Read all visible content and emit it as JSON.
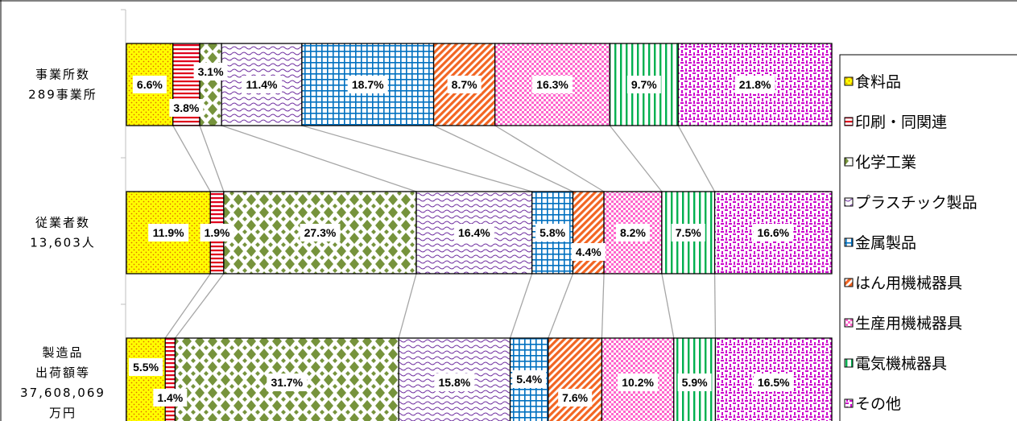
{
  "chart_data": {
    "type": "bar",
    "subtype": "stacked-100-horizontal",
    "title": "",
    "categories": [
      [
        "事業所数",
        "289事業所"
      ],
      [
        "従業者数",
        "13,603人"
      ],
      [
        "製造品",
        "出荷額等",
        "37,608,069",
        "万円"
      ]
    ],
    "series": [
      {
        "name": "食料品",
        "values": [
          6.6,
          11.9,
          5.5
        ],
        "color": "#ffff00"
      },
      {
        "name": "印刷・同関連",
        "values": [
          3.8,
          1.9,
          1.4
        ],
        "color": "#e0001b"
      },
      {
        "name": "化学工業",
        "values": [
          3.1,
          27.3,
          31.7
        ],
        "color": "#76933c"
      },
      {
        "name": "プラスチック製品",
        "values": [
          11.4,
          16.4,
          15.8
        ],
        "color": "#7030a0"
      },
      {
        "name": "金属製品",
        "values": [
          18.7,
          5.8,
          5.4
        ],
        "color": "#0070c0"
      },
      {
        "name": "はん用機械器具",
        "values": [
          8.7,
          4.4,
          7.6
        ],
        "color": "#f26522"
      },
      {
        "name": "生産用機械器具",
        "values": [
          16.3,
          8.2,
          10.2
        ],
        "color": "#ff66cc"
      },
      {
        "name": "電気機械器具",
        "values": [
          9.7,
          7.5,
          5.9
        ],
        "color": "#00b050"
      },
      {
        "name": "その他",
        "values": [
          21.8,
          16.6,
          16.5
        ],
        "color": "#cc00cc"
      }
    ],
    "labels": [
      [
        "6.6%",
        "3.8%",
        "3.1%",
        "11.4%",
        "18.7%",
        "8.7%",
        "16.3%",
        "9.7%",
        "21.8%"
      ],
      [
        "11.9%",
        "1.9%",
        "27.3%",
        "16.4%",
        "5.8%",
        "4.4%",
        "8.2%",
        "7.5%",
        "16.6%"
      ],
      [
        "5.5%",
        "1.4%",
        "31.7%",
        "15.8%",
        "5.4%",
        "7.6%",
        "10.2%",
        "5.9%",
        "16.5%"
      ]
    ],
    "xlim": [
      0,
      100
    ],
    "legend": "right",
    "connector_lines": true
  }
}
